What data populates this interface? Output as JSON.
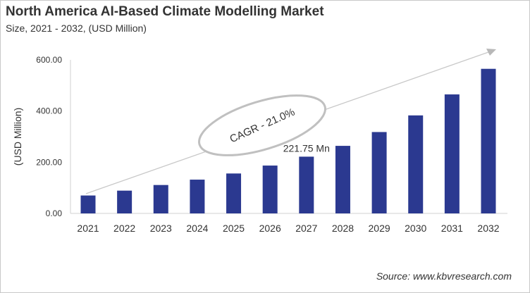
{
  "title": "North America AI-Based Climate Modelling Market",
  "subtitle": "Size, 2021 - 2032, (USD Million)",
  "source": "Source: www.kbvresearch.com",
  "chart_data": {
    "type": "bar",
    "categories": [
      "2021",
      "2022",
      "2023",
      "2024",
      "2025",
      "2026",
      "2027",
      "2028",
      "2029",
      "2030",
      "2031",
      "2032"
    ],
    "values": [
      70,
      89,
      111,
      132,
      156,
      187,
      221.75,
      264,
      318,
      383,
      465,
      565
    ],
    "ylabel": "(USD Million)",
    "xlabel": "",
    "ylim": [
      0,
      600
    ],
    "yticks": [
      "0.00",
      "200.00",
      "400.00",
      "600.00"
    ],
    "grid": false,
    "bar_color": "#2b3990",
    "annotations": {
      "data_label": {
        "category": "2027",
        "text": "221.75 Mn"
      },
      "cagr": "CAGR - 21.0%"
    }
  }
}
